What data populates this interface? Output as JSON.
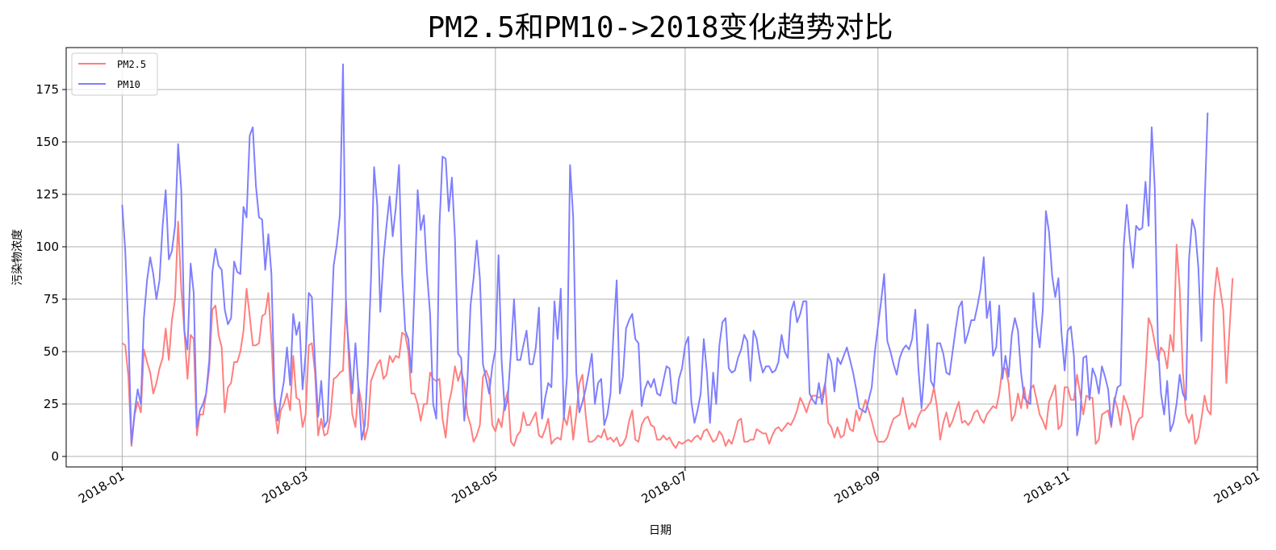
{
  "chart_data": {
    "type": "line",
    "title": "PM2.5和PM10->2018变化趋势对比",
    "xlabel": "日期",
    "ylabel": "污染物浓度",
    "x_start_date": "2018-01-01",
    "x_step_days": 1,
    "xlim_dates": [
      "2017-12-14",
      "2019-01-01"
    ],
    "ylim": [
      -5,
      195
    ],
    "y_ticks": [
      0,
      25,
      50,
      75,
      100,
      125,
      150,
      175
    ],
    "x_ticks": [
      {
        "date": "2018-01-01",
        "label": "2018-01"
      },
      {
        "date": "2018-03-01",
        "label": "2018-03"
      },
      {
        "date": "2018-05-01",
        "label": "2018-05"
      },
      {
        "date": "2018-07-01",
        "label": "2018-07"
      },
      {
        "date": "2018-09-01",
        "label": "2018-09"
      },
      {
        "date": "2018-11-01",
        "label": "2018-11"
      },
      {
        "date": "2019-01-01",
        "label": "2019-01"
      }
    ],
    "grid": true,
    "legend_position": "upper-left",
    "series": [
      {
        "name": "PM2.5",
        "color": "#ff7f7f",
        "values": [
          54,
          53,
          38,
          5,
          20,
          26,
          21,
          51,
          45,
          40,
          30,
          35,
          42,
          47,
          61,
          46,
          65,
          75,
          112,
          80,
          60,
          37,
          58,
          56,
          10,
          20,
          20,
          30,
          42,
          70,
          72,
          58,
          52,
          21,
          33,
          35,
          45,
          45,
          50,
          60,
          80,
          67,
          53,
          53,
          54,
          67,
          68,
          78,
          55,
          23,
          11,
          22,
          25,
          30,
          22,
          48,
          28,
          27,
          14,
          20,
          53,
          54,
          40,
          10,
          18,
          10,
          11,
          20,
          37,
          38,
          40,
          41,
          74,
          42,
          20,
          14,
          33,
          25,
          8,
          14,
          36,
          40,
          44,
          46,
          37,
          39,
          48,
          45,
          48,
          47,
          59,
          58,
          50,
          30,
          30,
          25,
          17,
          25,
          25,
          40,
          37,
          36,
          37,
          18,
          9,
          25,
          32,
          43,
          36,
          41,
          35,
          20,
          15,
          7,
          10,
          15,
          38,
          41,
          37,
          15,
          12,
          18,
          14,
          26,
          31,
          7,
          5,
          10,
          12,
          21,
          15,
          15,
          18,
          21,
          10,
          9,
          13,
          18,
          6,
          8,
          9,
          8,
          19,
          15,
          24,
          8,
          20,
          35,
          39,
          20,
          7,
          7,
          8,
          10,
          9,
          13,
          8,
          9,
          7,
          9,
          5,
          6,
          9,
          17,
          22,
          8,
          7,
          15,
          18,
          19,
          15,
          14,
          8,
          8,
          10,
          8,
          9,
          6,
          4,
          7,
          6,
          7,
          8,
          7,
          9,
          10,
          8,
          12,
          13,
          10,
          7,
          8,
          12,
          10,
          5,
          8,
          6,
          11,
          17,
          18,
          7,
          7,
          8,
          8,
          13,
          12,
          11,
          11,
          6,
          10,
          13,
          14,
          12,
          14,
          16,
          15,
          18,
          22,
          28,
          25,
          21,
          26,
          29,
          29,
          28,
          29,
          35,
          16,
          14,
          9,
          14,
          9,
          10,
          18,
          13,
          12,
          22,
          17,
          22,
          27,
          22,
          17,
          11,
          7,
          7,
          7,
          9,
          14,
          18,
          19,
          20,
          28,
          20,
          13,
          16,
          14,
          19,
          22,
          22,
          24,
          26,
          33,
          23,
          8,
          16,
          21,
          14,
          17,
          22,
          26,
          16,
          17,
          15,
          17,
          21,
          22,
          18,
          16,
          20,
          22,
          24,
          23,
          30,
          42,
          42,
          35,
          17,
          20,
          30,
          23,
          33,
          23,
          32,
          34,
          27,
          20,
          17,
          13,
          26,
          30,
          34,
          13,
          15,
          33,
          33,
          27,
          27,
          39,
          30,
          20,
          29,
          28,
          28,
          6,
          8,
          20,
          21,
          22,
          14,
          28,
          23,
          15,
          29,
          25,
          20,
          8,
          15,
          18,
          19,
          40,
          66,
          62,
          54,
          46,
          52,
          50,
          42,
          58,
          50,
          101,
          80,
          41,
          20,
          16,
          20,
          6,
          9,
          18,
          29,
          22,
          20,
          74,
          90,
          80,
          70,
          35,
          60,
          85
        ]
      },
      {
        "name": "PM10",
        "color": "#7f7fff",
        "values": [
          120,
          98,
          60,
          6,
          21,
          32,
          25,
          66,
          84,
          95,
          87,
          75,
          84,
          110,
          127,
          94,
          98,
          110,
          149,
          127,
          60,
          51,
          92,
          78,
          14,
          22,
          25,
          30,
          46,
          88,
          99,
          91,
          89,
          70,
          63,
          66,
          93,
          88,
          87,
          119,
          114,
          153,
          157,
          129,
          114,
          113,
          89,
          106,
          87,
          28,
          17,
          27,
          36,
          52,
          34,
          68,
          58,
          64,
          32,
          49,
          78,
          76,
          45,
          19,
          36,
          14,
          17,
          56,
          91,
          101,
          115,
          187,
          68,
          50,
          30,
          54,
          32,
          8,
          15,
          44,
          85,
          138,
          120,
          69,
          94,
          110,
          124,
          105,
          119,
          139,
          87,
          60,
          56,
          40,
          80,
          127,
          108,
          115,
          88,
          68,
          25,
          18,
          110,
          143,
          142,
          117,
          133,
          104,
          49,
          47,
          17,
          35,
          72,
          85,
          103,
          85,
          44,
          37,
          30,
          43,
          51,
          96,
          46,
          22,
          28,
          50,
          75,
          46,
          46,
          53,
          60,
          44,
          44,
          52,
          71,
          18,
          28,
          35,
          33,
          74,
          56,
          80,
          18,
          38,
          139,
          114,
          40,
          21,
          26,
          32,
          40,
          49,
          25,
          35,
          37,
          15,
          20,
          30,
          60,
          84,
          30,
          38,
          61,
          65,
          68,
          56,
          54,
          24,
          32,
          36,
          33,
          37,
          30,
          29,
          36,
          43,
          42,
          26,
          25,
          37,
          42,
          53,
          57,
          26,
          16,
          22,
          30,
          56,
          40,
          16,
          40,
          25,
          53,
          64,
          66,
          42,
          40,
          41,
          47,
          51,
          58,
          55,
          36,
          60,
          56,
          46,
          40,
          43,
          43,
          40,
          41,
          45,
          58,
          50,
          47,
          69,
          74,
          64,
          68,
          74,
          74,
          30,
          27,
          25,
          35,
          25,
          34,
          49,
          45,
          31,
          47,
          44,
          48,
          52,
          46,
          40,
          32,
          23,
          22,
          21,
          27,
          33,
          50,
          62,
          74,
          87,
          55,
          50,
          44,
          39,
          47,
          51,
          53,
          51,
          56,
          70,
          42,
          23,
          42,
          63,
          36,
          33,
          54,
          54,
          49,
          40,
          39,
          50,
          61,
          71,
          74,
          54,
          59,
          65,
          65,
          72,
          80,
          95,
          66,
          74,
          48,
          52,
          72,
          37,
          48,
          38,
          58,
          66,
          60,
          40,
          28,
          26,
          25,
          78,
          62,
          52,
          70,
          117,
          107,
          86,
          76,
          85,
          59,
          41,
          60,
          62,
          48,
          10,
          18,
          47,
          48,
          27,
          42,
          38,
          30,
          43,
          38,
          32,
          15,
          26,
          33,
          34,
          100,
          120,
          103,
          90,
          110,
          108,
          109,
          131,
          110,
          157,
          128,
          54,
          30,
          20,
          36,
          12,
          16,
          25,
          39,
          30,
          27,
          94,
          113,
          108,
          90,
          55,
          120,
          164
        ]
      }
    ]
  }
}
